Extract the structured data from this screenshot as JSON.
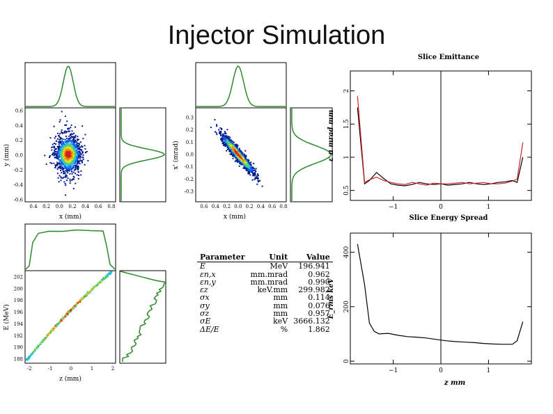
{
  "title": "Injector Simulation",
  "colors": {
    "hist": "#2a8a2a",
    "black": "#000000",
    "red": "#d62020"
  },
  "chart_data": [
    {
      "id": "xy",
      "type": "scatter",
      "xlabel": "x (mm)",
      "ylabel": "y (mm)",
      "xticks": [
        "0.4",
        "0.2",
        "0.0",
        "0.2",
        "0.4",
        "0.6",
        "0.8"
      ],
      "yticks": [
        "0.6",
        "0.4",
        "0.2",
        "0.0",
        "-0.2",
        "-0.4",
        "-0.6"
      ],
      "ylim": [
        -0.6,
        0.6
      ]
    },
    {
      "id": "xxp",
      "type": "scatter",
      "xlabel": "x (mm)",
      "ylabel": "x' (mrad)",
      "xticks": [
        "0.6",
        "0.4",
        "0.2",
        "0.0",
        "0.2",
        "0.4",
        "0.6",
        "0.8"
      ],
      "yticks": [
        "0.3",
        "0.2",
        "0.1",
        "0.0",
        "-0.1",
        "-0.2",
        "-0.3"
      ],
      "ylim": [
        -0.35,
        0.35
      ]
    },
    {
      "id": "zE",
      "type": "scatter",
      "xlabel": "z (mm)",
      "ylabel": "E (MeV)",
      "xticks": [
        "-2",
        "-1",
        "0",
        "1",
        "2"
      ],
      "yticks": [
        "202",
        "200",
        "198",
        "196",
        "194",
        "192",
        "190",
        "188"
      ],
      "ylim": [
        187,
        203
      ]
    },
    {
      "id": "slice-emittance",
      "type": "line",
      "title": "Slice Emittance",
      "ylabel": "ε π mrad mm",
      "xticks": [
        "−1",
        "0",
        "1"
      ],
      "yticks": [
        "0.5",
        "1",
        "1.5",
        "2"
      ],
      "xlim": [
        -1.9,
        1.9
      ],
      "ylim": [
        0.35,
        2.3
      ],
      "series": [
        {
          "name": "black",
          "x": [
            -1.75,
            -1.6,
            -1.5,
            -1.35,
            -1.2,
            -1.05,
            -0.9,
            -0.75,
            -0.6,
            -0.45,
            -0.3,
            -0.15,
            0,
            0.15,
            0.3,
            0.45,
            0.6,
            0.75,
            0.9,
            1.05,
            1.2,
            1.35,
            1.5,
            1.6,
            1.72
          ],
          "y": [
            1.75,
            0.6,
            0.65,
            0.77,
            0.68,
            0.6,
            0.58,
            0.57,
            0.59,
            0.62,
            0.6,
            0.59,
            0.6,
            0.58,
            0.59,
            0.6,
            0.62,
            0.6,
            0.59,
            0.6,
            0.62,
            0.63,
            0.65,
            0.62,
            1.0
          ]
        },
        {
          "name": "red",
          "x": [
            -1.75,
            -1.6,
            -1.5,
            -1.35,
            -1.2,
            -1.05,
            -0.9,
            -0.75,
            -0.6,
            -0.45,
            -0.3,
            -0.15,
            0,
            0.15,
            0.3,
            0.45,
            0.6,
            0.75,
            0.9,
            1.05,
            1.2,
            1.35,
            1.5,
            1.6,
            1.72
          ],
          "y": [
            1.92,
            0.62,
            0.66,
            0.7,
            0.65,
            0.62,
            0.6,
            0.59,
            0.62,
            0.6,
            0.58,
            0.61,
            0.6,
            0.6,
            0.61,
            0.62,
            0.6,
            0.61,
            0.62,
            0.6,
            0.6,
            0.61,
            0.64,
            0.67,
            1.22
          ]
        }
      ]
    },
    {
      "id": "slice-energy-spread",
      "type": "line",
      "title": "Slice Energy Spread",
      "ylabel": "E_rms keV",
      "xlabel": "z mm",
      "xticks": [
        "−1",
        "0",
        "1"
      ],
      "yticks": [
        "0",
        "200",
        "400"
      ],
      "xlim": [
        -1.9,
        1.9
      ],
      "ylim": [
        -10,
        470
      ],
      "series": [
        {
          "name": "black",
          "x": [
            -1.75,
            -1.6,
            -1.5,
            -1.4,
            -1.3,
            -1.1,
            -0.9,
            -0.7,
            -0.5,
            -0.3,
            -0.1,
            0.1,
            0.3,
            0.5,
            0.7,
            0.9,
            1.1,
            1.3,
            1.5,
            1.6,
            1.72
          ],
          "y": [
            430,
            280,
            140,
            110,
            100,
            102,
            95,
            90,
            88,
            85,
            80,
            75,
            72,
            70,
            68,
            65,
            63,
            62,
            62,
            75,
            145
          ]
        }
      ]
    }
  ],
  "params": {
    "headers": [
      "Parameter",
      "Unit",
      "Value"
    ],
    "rows": [
      [
        "E",
        "MeV",
        "196.941"
      ],
      [
        "εn,x",
        "mm.mrad",
        "0.962"
      ],
      [
        "εn,y",
        "mm.mrad",
        "0.990"
      ],
      [
        "εz",
        "keV.mm",
        "299.982"
      ],
      [
        "σx",
        "mm",
        "0.114"
      ],
      [
        "σy",
        "mm",
        "0.076"
      ],
      [
        "σz",
        "mm",
        "0.957"
      ],
      [
        "σE",
        "keV",
        "3666.132"
      ],
      [
        "ΔE/E",
        "%",
        "1.862"
      ]
    ]
  }
}
